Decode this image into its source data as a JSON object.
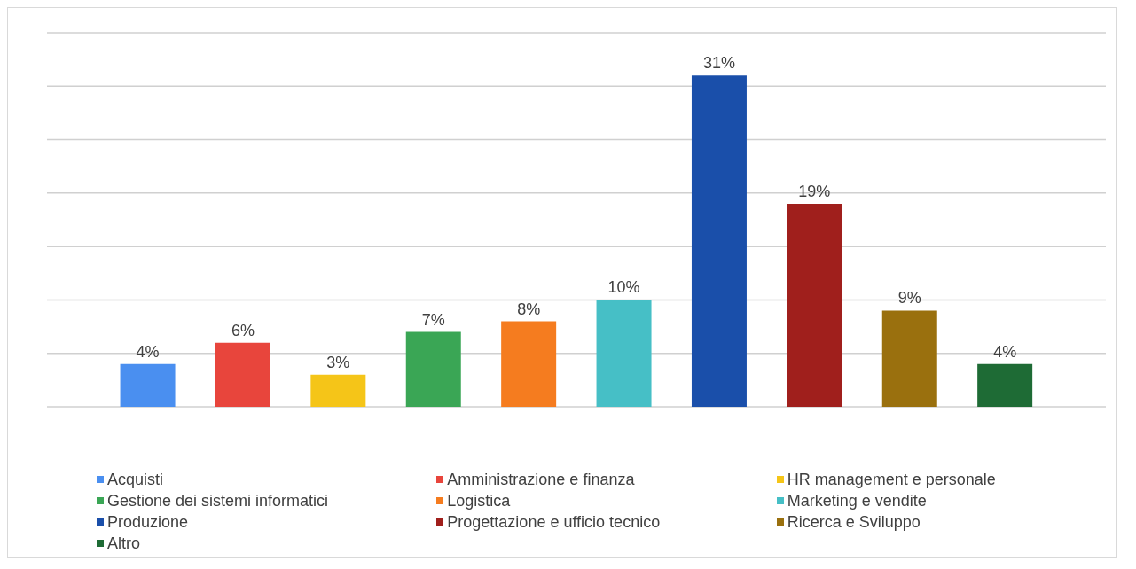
{
  "chart_data": {
    "type": "bar",
    "stacked": true,
    "categories": [
      null,
      null,
      null,
      null,
      null,
      null,
      null,
      null,
      null,
      null
    ],
    "series": [
      {
        "name": "Acquisti",
        "color": "#4a8ff0",
        "values": [
          4,
          null,
          null,
          null,
          null,
          null,
          null,
          null,
          null,
          null
        ],
        "value_labels": [
          "4%",
          null,
          null,
          null,
          null,
          null,
          null,
          null,
          null,
          null
        ]
      },
      {
        "name": "Amministrazione e finanza",
        "color": "#e8453c",
        "values": [
          null,
          6,
          null,
          null,
          null,
          null,
          null,
          null,
          null,
          null
        ],
        "value_labels": [
          null,
          "6%",
          null,
          null,
          null,
          null,
          null,
          null,
          null,
          null
        ]
      },
      {
        "name": "HR management e personale",
        "color": "#f5c518",
        "values": [
          null,
          null,
          3,
          null,
          null,
          null,
          null,
          null,
          null,
          null
        ],
        "value_labels": [
          null,
          null,
          "3%",
          null,
          null,
          null,
          null,
          null,
          null,
          null
        ]
      },
      {
        "name": "Gestione dei sistemi informatici",
        "color": "#3aa655",
        "values": [
          null,
          null,
          null,
          7,
          null,
          null,
          null,
          null,
          null,
          null
        ],
        "value_labels": [
          null,
          null,
          null,
          "7%",
          null,
          null,
          null,
          null,
          null,
          null
        ]
      },
      {
        "name": "Logistica",
        "color": "#f57c1f",
        "values": [
          null,
          null,
          null,
          null,
          8,
          null,
          null,
          null,
          null,
          null
        ],
        "value_labels": [
          null,
          null,
          null,
          null,
          "8%",
          null,
          null,
          null,
          null,
          null
        ]
      },
      {
        "name": "Marketing e vendite",
        "color": "#46bfc6",
        "values": [
          null,
          null,
          null,
          null,
          null,
          10,
          null,
          null,
          null,
          null
        ],
        "value_labels": [
          null,
          null,
          null,
          null,
          null,
          "10%",
          null,
          null,
          null,
          null
        ]
      },
      {
        "name": "Produzione",
        "color": "#1a4faa",
        "values": [
          null,
          null,
          null,
          null,
          null,
          null,
          31,
          null,
          null,
          null
        ],
        "value_labels": [
          null,
          null,
          null,
          null,
          null,
          null,
          "31%",
          null,
          null,
          null
        ]
      },
      {
        "name": "Progettazione e ufficio tecnico",
        "color": "#a01f1c",
        "values": [
          null,
          null,
          null,
          null,
          null,
          null,
          null,
          19,
          null,
          null
        ],
        "value_labels": [
          null,
          null,
          null,
          null,
          null,
          null,
          null,
          "19%",
          null,
          null
        ]
      },
      {
        "name": "Ricerca e Sviluppo",
        "color": "#9a700e",
        "values": [
          null,
          null,
          null,
          null,
          null,
          null,
          null,
          null,
          9,
          null
        ],
        "value_labels": [
          null,
          null,
          null,
          null,
          null,
          null,
          null,
          null,
          "9%",
          null
        ]
      },
      {
        "name": "Altro",
        "color": "#1e6b35",
        "values": [
          null,
          null,
          null,
          null,
          null,
          null,
          null,
          null,
          null,
          4
        ],
        "value_labels": [
          null,
          null,
          null,
          null,
          null,
          null,
          null,
          null,
          null,
          "4%"
        ]
      }
    ],
    "ylim": [
      0,
      35
    ],
    "yticks": [
      {
        "value": 0,
        "label": null
      },
      {
        "value": 5,
        "label": null
      },
      {
        "value": 10,
        "label": null
      },
      {
        "value": 15,
        "label": null
      },
      {
        "value": 20,
        "label": null
      },
      {
        "value": 25,
        "label": null
      },
      {
        "value": 30,
        "label": null
      },
      {
        "value": 35,
        "label": null
      }
    ],
    "grid": "y",
    "legend": "bottom"
  }
}
